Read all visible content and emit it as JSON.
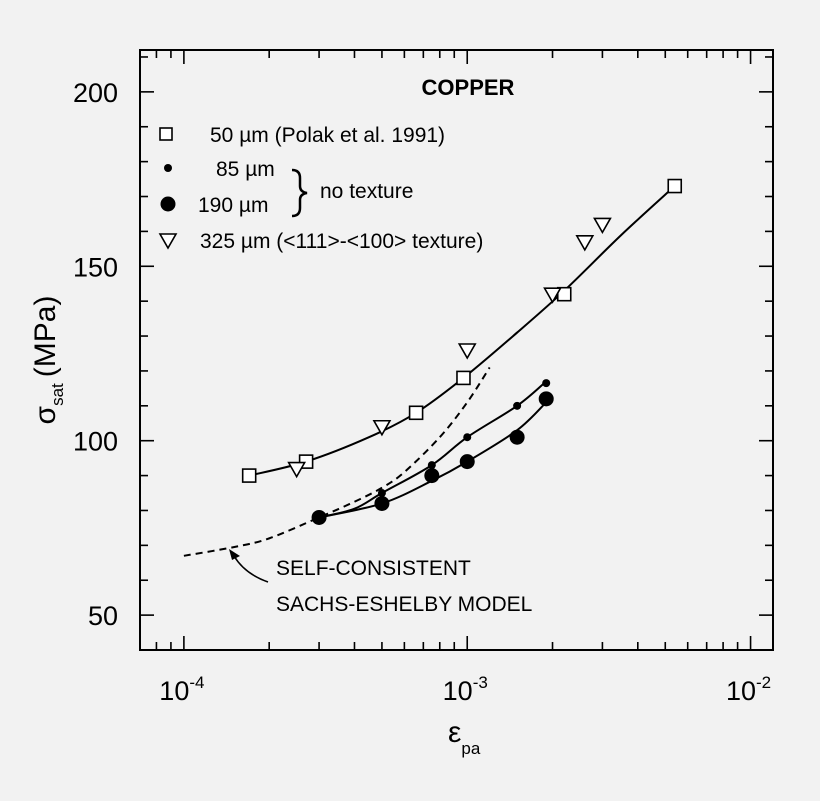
{
  "chart_data": {
    "type": "scatter",
    "title": "COPPER",
    "xlabel": {
      "symbol": "ε",
      "subscript": "pa"
    },
    "ylabel": {
      "symbol": "σ",
      "subscript": "sat",
      "unit": "(MPa)"
    },
    "xscale": "log",
    "xlim": [
      7e-05,
      0.012
    ],
    "ylim": [
      40,
      212
    ],
    "x_ticks": [
      {
        "base": "10",
        "exp": "-4"
      },
      {
        "base": "10",
        "exp": "-3"
      },
      {
        "base": "10",
        "exp": "-2"
      }
    ],
    "y_ticks": [
      "50",
      "100",
      "150",
      "200"
    ],
    "y_tick_values": [
      50,
      100,
      150,
      200
    ],
    "legend_position": "top-left",
    "series": [
      {
        "name": "50 µm (Polak et al. 1991)",
        "marker": "open-square",
        "x": [
          0.00017,
          0.00027,
          0.00066,
          0.00097,
          0.0022,
          0.0054
        ],
        "y": [
          90,
          94,
          108,
          118,
          142,
          173
        ]
      },
      {
        "name": "85 µm",
        "marker": "small-filled-circle",
        "x": [
          0.0005,
          0.00075,
          0.001,
          0.0015,
          0.0019
        ],
        "y": [
          85,
          93,
          101,
          110,
          116.5
        ]
      },
      {
        "name": "190 µm",
        "marker": "large-filled-circle",
        "x": [
          0.0003,
          0.0005,
          0.00075,
          0.001,
          0.0015,
          0.0019
        ],
        "y": [
          78,
          82,
          90,
          94,
          101,
          112
        ]
      },
      {
        "name": "325 µm (<111>-<100> texture)",
        "marker": "open-triangle-down",
        "x": [
          0.00025,
          0.0005,
          0.001,
          0.002,
          0.0026,
          0.003
        ],
        "y": [
          92,
          104,
          126,
          142,
          157,
          162
        ]
      }
    ],
    "fit_curves": [
      {
        "name": "50 µm fit",
        "style": "solid",
        "x": [
          0.00017,
          0.00027,
          0.00045,
          0.00066,
          0.00097,
          0.0015,
          0.0022,
          0.0035,
          0.0054
        ],
        "y": [
          90,
          94,
          101,
          108,
          118,
          131,
          143,
          159,
          173
        ]
      },
      {
        "name": "85 µm fit",
        "style": "solid",
        "x": [
          0.0003,
          0.0004,
          0.0005,
          0.00075,
          0.001,
          0.0015,
          0.0019
        ],
        "y": [
          78,
          80.5,
          85,
          93,
          101,
          110,
          117
        ]
      },
      {
        "name": "190 µm fit",
        "style": "solid",
        "x": [
          0.0003,
          0.0005,
          0.00075,
          0.001,
          0.0015,
          0.0019
        ],
        "y": [
          78,
          82,
          88.5,
          94,
          103,
          111
        ]
      },
      {
        "name": "SELF-CONSISTENT SACHS-ESHELBY MODEL",
        "style": "dashed",
        "x": [
          0.0001,
          0.00015,
          0.0002,
          0.0003,
          0.0004,
          0.0005,
          0.0006,
          0.0008,
          0.001,
          0.0012
        ],
        "y": [
          67,
          69.5,
          72,
          78,
          82.5,
          86.5,
          91,
          101,
          111,
          121
        ]
      }
    ],
    "legend_group_label": "no texture",
    "annotation": [
      "SELF-CONSISTENT",
      "SACHS-ESHELBY MODEL"
    ]
  }
}
